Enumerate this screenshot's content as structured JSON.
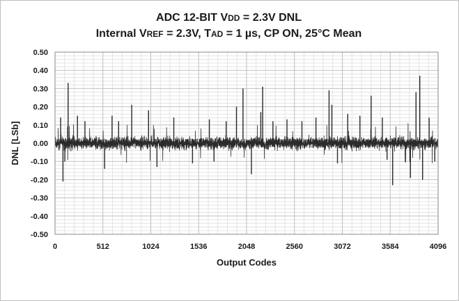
{
  "chart_data": {
    "type": "line",
    "title_line1": {
      "pre": "ADC 12-BIT V",
      "sub": "DD",
      "post": " = 2.3V DNL"
    },
    "title_line2": {
      "pre": "Internal V",
      "sub1": "REF",
      "mid": " = 2.3V, T",
      "sub2": "AD",
      "post": " = 1 µs, CP ON, 25°C Mean"
    },
    "xlabel": "Output Codes",
    "ylabel": "DNL [LSb]",
    "xlim": [
      0,
      4096
    ],
    "ylim": [
      -0.5,
      0.5
    ],
    "xticks": [
      0,
      512,
      1024,
      1536,
      2048,
      2560,
      3072,
      3584,
      4096
    ],
    "xtick_labels": [
      "0",
      "512",
      "1024",
      "1536",
      "2048",
      "2560",
      "3072",
      "3584",
      "4096"
    ],
    "yticks": [
      0.5,
      0.4,
      0.3,
      0.2,
      0.1,
      0.0,
      -0.1,
      -0.2,
      -0.3,
      -0.4,
      -0.5
    ],
    "ytick_labels": [
      "0.50",
      "0.40",
      "0.30",
      "0.20",
      "0.10",
      "0.00",
      "-0.10",
      "-0.20",
      "-0.30",
      "-0.40",
      "-0.50"
    ],
    "grid": true,
    "minor_grid": true,
    "legend": "none",
    "series": [
      {
        "color": "#2b2b2b",
        "noise_band": [
          -0.06,
          0.06
        ],
        "notable_points": [
          {
            "x": 60,
            "y": 0.14
          },
          {
            "x": 85,
            "y": -0.21
          },
          {
            "x": 140,
            "y": 0.33
          },
          {
            "x": 105,
            "y": -0.1
          },
          {
            "x": 240,
            "y": 0.15
          },
          {
            "x": 320,
            "y": 0.12
          },
          {
            "x": 530,
            "y": -0.14
          },
          {
            "x": 610,
            "y": 0.15
          },
          {
            "x": 680,
            "y": 0.12
          },
          {
            "x": 820,
            "y": 0.21
          },
          {
            "x": 1000,
            "y": 0.18
          },
          {
            "x": 1090,
            "y": -0.13
          },
          {
            "x": 1270,
            "y": 0.14
          },
          {
            "x": 1470,
            "y": -0.11
          },
          {
            "x": 1650,
            "y": 0.13
          },
          {
            "x": 1700,
            "y": -0.1
          },
          {
            "x": 1830,
            "y": 0.12
          },
          {
            "x": 1940,
            "y": 0.2
          },
          {
            "x": 2010,
            "y": 0.3
          },
          {
            "x": 2100,
            "y": -0.17
          },
          {
            "x": 2200,
            "y": 0.17
          },
          {
            "x": 2220,
            "y": 0.31
          },
          {
            "x": 2330,
            "y": 0.12
          },
          {
            "x": 2480,
            "y": 0.13
          },
          {
            "x": 2640,
            "y": 0.12
          },
          {
            "x": 2790,
            "y": 0.14
          },
          {
            "x": 2930,
            "y": 0.29
          },
          {
            "x": 2960,
            "y": 0.21
          },
          {
            "x": 3020,
            "y": -0.11
          },
          {
            "x": 3130,
            "y": 0.16
          },
          {
            "x": 3260,
            "y": 0.15
          },
          {
            "x": 3380,
            "y": 0.26
          },
          {
            "x": 3500,
            "y": 0.14
          },
          {
            "x": 3550,
            "y": -0.09
          },
          {
            "x": 3610,
            "y": -0.23
          },
          {
            "x": 3800,
            "y": -0.19
          },
          {
            "x": 3860,
            "y": 0.28
          },
          {
            "x": 3900,
            "y": 0.37
          },
          {
            "x": 3930,
            "y": -0.2
          },
          {
            "x": 4000,
            "y": 0.14
          },
          {
            "x": 4060,
            "y": -0.1
          }
        ]
      }
    ]
  }
}
